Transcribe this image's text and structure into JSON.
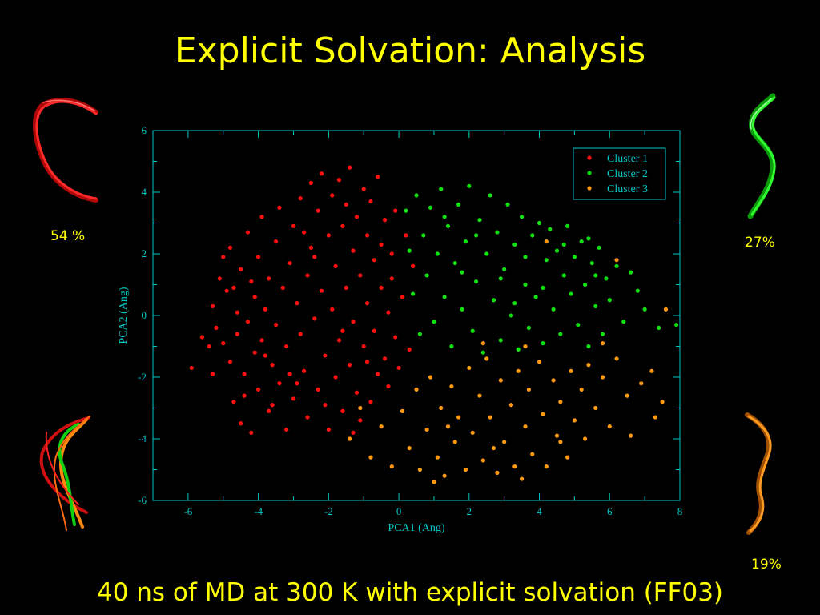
{
  "slide": {
    "title": "Explicit Solvation: Analysis",
    "caption": "40 ns of MD at 300 K with explicit solvation (FF03)",
    "percent_cluster1": "54 %",
    "percent_cluster2": "27%",
    "percent_cluster3": "19%"
  },
  "structures": [
    {
      "name": "cluster-1-structure",
      "color": "#e01010"
    },
    {
      "name": "cluster-2-structure",
      "color": "#20d020"
    },
    {
      "name": "cluster-3-structure",
      "color": "#e07a10"
    },
    {
      "name": "overlay-structure",
      "colors": [
        "#e01010",
        "#20d020",
        "#e07a10"
      ]
    }
  ],
  "chart_data": {
    "type": "scatter",
    "xlabel": "PCA1 (Ang)",
    "ylabel": "PCA2 (Ang)",
    "xlim": [
      -7,
      8
    ],
    "ylim": [
      -6,
      6
    ],
    "xticks": [
      -6,
      -4,
      -2,
      0,
      2,
      4,
      6,
      8
    ],
    "yticks": [
      -6,
      -4,
      -2,
      0,
      2,
      4,
      6
    ],
    "legend_position": "top-right",
    "axis_color": "#00c8c8",
    "series": [
      {
        "name": "Cluster 1",
        "color": "#ff1010",
        "points": [
          [
            -5.9,
            -1.7
          ],
          [
            -5.6,
            -0.7
          ],
          [
            -5.4,
            -1.0
          ],
          [
            -5.3,
            0.3
          ],
          [
            -5.2,
            -0.4
          ],
          [
            -5.1,
            1.2
          ],
          [
            -5.0,
            -0.9
          ],
          [
            -5.0,
            1.9
          ],
          [
            -4.9,
            0.8
          ],
          [
            -4.8,
            -1.5
          ],
          [
            -4.8,
            2.2
          ],
          [
            -4.7,
            -2.8
          ],
          [
            -4.6,
            0.1
          ],
          [
            -4.6,
            -0.6
          ],
          [
            -4.5,
            -3.5
          ],
          [
            -4.5,
            1.5
          ],
          [
            -4.4,
            -1.9
          ],
          [
            -4.3,
            2.7
          ],
          [
            -4.3,
            -0.2
          ],
          [
            -4.2,
            -3.8
          ],
          [
            -4.1,
            0.6
          ],
          [
            -4.1,
            -1.2
          ],
          [
            -4.0,
            1.9
          ],
          [
            -4.0,
            -2.4
          ],
          [
            -3.9,
            -0.8
          ],
          [
            -3.9,
            3.2
          ],
          [
            -3.8,
            0.2
          ],
          [
            -3.7,
            -3.1
          ],
          [
            -3.7,
            1.2
          ],
          [
            -3.6,
            -1.6
          ],
          [
            -3.5,
            2.4
          ],
          [
            -3.5,
            -0.3
          ],
          [
            -3.4,
            -2.2
          ],
          [
            -3.4,
            3.5
          ],
          [
            -3.3,
            0.9
          ],
          [
            -3.2,
            -3.7
          ],
          [
            -3.2,
            -1.0
          ],
          [
            -3.1,
            1.7
          ],
          [
            -3.0,
            2.9
          ],
          [
            -3.0,
            -2.7
          ],
          [
            -2.9,
            0.4
          ],
          [
            -2.8,
            -0.6
          ],
          [
            -2.8,
            3.8
          ],
          [
            -2.7,
            -1.8
          ],
          [
            -2.6,
            1.3
          ],
          [
            -2.6,
            -3.3
          ],
          [
            -2.5,
            2.2
          ],
          [
            -2.5,
            4.3
          ],
          [
            -2.4,
            -0.1
          ],
          [
            -2.3,
            -2.4
          ],
          [
            -2.3,
            3.4
          ],
          [
            -2.2,
            0.8
          ],
          [
            -2.2,
            4.6
          ],
          [
            -2.1,
            -1.3
          ],
          [
            -2.0,
            2.6
          ],
          [
            -2.0,
            -3.7
          ],
          [
            -1.9,
            3.9
          ],
          [
            -1.9,
            0.2
          ],
          [
            -1.8,
            1.6
          ],
          [
            -1.8,
            -2.0
          ],
          [
            -1.7,
            4.4
          ],
          [
            -1.7,
            -0.8
          ],
          [
            -1.6,
            2.9
          ],
          [
            -1.6,
            -3.1
          ],
          [
            -1.5,
            0.9
          ],
          [
            -1.5,
            3.6
          ],
          [
            -1.4,
            -1.6
          ],
          [
            -1.4,
            4.8
          ],
          [
            -1.3,
            2.1
          ],
          [
            -1.3,
            -0.2
          ],
          [
            -1.2,
            -2.5
          ],
          [
            -1.2,
            3.2
          ],
          [
            -1.1,
            1.3
          ],
          [
            -1.1,
            -3.4
          ],
          [
            -1.0,
            4.1
          ],
          [
            -1.0,
            -1.0
          ],
          [
            -0.9,
            2.6
          ],
          [
            -0.9,
            0.4
          ],
          [
            -0.8,
            -2.8
          ],
          [
            -0.8,
            3.7
          ],
          [
            -0.7,
            -0.5
          ],
          [
            -0.7,
            1.8
          ],
          [
            -0.6,
            4.5
          ],
          [
            -0.6,
            -1.9
          ],
          [
            -0.5,
            2.3
          ],
          [
            -0.5,
            0.9
          ],
          [
            -0.4,
            -1.4
          ],
          [
            -0.4,
            3.1
          ],
          [
            -0.3,
            0.1
          ],
          [
            -0.3,
            -2.3
          ],
          [
            -0.2,
            2.0
          ],
          [
            -0.2,
            1.2
          ],
          [
            -0.1,
            -0.7
          ],
          [
            -0.1,
            3.4
          ],
          [
            0.0,
            -1.7
          ],
          [
            0.1,
            0.6
          ],
          [
            0.2,
            2.6
          ],
          [
            0.3,
            -1.1
          ],
          [
            0.4,
            1.6
          ],
          [
            -4.4,
            -2.6
          ],
          [
            -3.6,
            -2.9
          ],
          [
            -2.9,
            -2.2
          ],
          [
            -4.2,
            1.1
          ],
          [
            -3.1,
            -1.9
          ],
          [
            -2.4,
            1.9
          ],
          [
            -1.6,
            -0.5
          ],
          [
            -0.9,
            -1.5
          ],
          [
            -2.7,
            2.7
          ],
          [
            -3.8,
            -1.3
          ],
          [
            -4.7,
            0.9
          ],
          [
            -5.3,
            -1.9
          ],
          [
            -2.1,
            -2.9
          ],
          [
            -1.3,
            -3.8
          ]
        ]
      },
      {
        "name": "Cluster 2",
        "color": "#10e010",
        "points": [
          [
            0.2,
            3.4
          ],
          [
            0.3,
            2.1
          ],
          [
            0.4,
            0.7
          ],
          [
            0.5,
            3.9
          ],
          [
            0.6,
            -0.6
          ],
          [
            0.7,
            2.6
          ],
          [
            0.8,
            1.3
          ],
          [
            0.9,
            3.5
          ],
          [
            1.0,
            -0.2
          ],
          [
            1.1,
            2.0
          ],
          [
            1.2,
            4.1
          ],
          [
            1.3,
            0.6
          ],
          [
            1.4,
            2.9
          ],
          [
            1.5,
            -1.0
          ],
          [
            1.6,
            1.7
          ],
          [
            1.7,
            3.6
          ],
          [
            1.8,
            0.2
          ],
          [
            1.9,
            2.4
          ],
          [
            2.0,
            4.2
          ],
          [
            2.1,
            -0.5
          ],
          [
            2.2,
            1.1
          ],
          [
            2.3,
            3.1
          ],
          [
            2.4,
            -1.2
          ],
          [
            2.5,
            2.0
          ],
          [
            2.6,
            3.9
          ],
          [
            2.7,
            0.5
          ],
          [
            2.8,
            2.7
          ],
          [
            2.9,
            -0.8
          ],
          [
            3.0,
            1.5
          ],
          [
            3.1,
            3.6
          ],
          [
            3.2,
            0.0
          ],
          [
            3.3,
            2.3
          ],
          [
            3.4,
            -1.1
          ],
          [
            3.5,
            3.2
          ],
          [
            3.6,
            1.0
          ],
          [
            3.7,
            -0.4
          ],
          [
            3.8,
            2.6
          ],
          [
            3.9,
            0.6
          ],
          [
            4.0,
            3.0
          ],
          [
            4.1,
            -0.9
          ],
          [
            4.2,
            1.8
          ],
          [
            4.3,
            2.8
          ],
          [
            4.4,
            0.2
          ],
          [
            4.5,
            2.1
          ],
          [
            4.6,
            -0.6
          ],
          [
            4.7,
            1.3
          ],
          [
            4.8,
            2.9
          ],
          [
            4.9,
            0.7
          ],
          [
            5.0,
            1.9
          ],
          [
            5.1,
            -0.3
          ],
          [
            5.2,
            2.4
          ],
          [
            5.3,
            1.0
          ],
          [
            5.4,
            -1.0
          ],
          [
            5.5,
            1.7
          ],
          [
            5.6,
            0.3
          ],
          [
            5.7,
            2.2
          ],
          [
            5.8,
            -0.6
          ],
          [
            5.9,
            1.2
          ],
          [
            6.0,
            0.5
          ],
          [
            6.2,
            1.6
          ],
          [
            6.4,
            -0.2
          ],
          [
            6.6,
            1.4
          ],
          [
            6.8,
            0.8
          ],
          [
            7.0,
            0.2
          ],
          [
            7.4,
            -0.4
          ],
          [
            7.9,
            -0.3
          ],
          [
            1.3,
            3.2
          ],
          [
            2.2,
            2.6
          ],
          [
            3.6,
            1.9
          ],
          [
            4.7,
            2.3
          ],
          [
            5.4,
            2.5
          ],
          [
            2.9,
            1.2
          ],
          [
            1.8,
            1.4
          ],
          [
            4.1,
            0.9
          ],
          [
            5.6,
            1.3
          ],
          [
            3.3,
            0.4
          ]
        ]
      },
      {
        "name": "Cluster 3",
        "color": "#ff9a10",
        "points": [
          [
            -1.4,
            -4.0
          ],
          [
            -1.1,
            -3.0
          ],
          [
            -0.8,
            -4.6
          ],
          [
            -0.5,
            -3.6
          ],
          [
            -0.2,
            -4.9
          ],
          [
            0.1,
            -3.1
          ],
          [
            0.3,
            -4.3
          ],
          [
            0.5,
            -2.4
          ],
          [
            0.6,
            -5.0
          ],
          [
            0.8,
            -3.7
          ],
          [
            0.9,
            -2.0
          ],
          [
            1.1,
            -4.6
          ],
          [
            1.2,
            -3.0
          ],
          [
            1.3,
            -5.2
          ],
          [
            1.5,
            -2.3
          ],
          [
            1.6,
            -4.1
          ],
          [
            1.7,
            -3.3
          ],
          [
            1.9,
            -5.0
          ],
          [
            2.0,
            -1.7
          ],
          [
            2.1,
            -3.8
          ],
          [
            2.3,
            -2.6
          ],
          [
            2.4,
            -4.7
          ],
          [
            2.5,
            -1.4
          ],
          [
            2.6,
            -3.3
          ],
          [
            2.8,
            -5.1
          ],
          [
            2.9,
            -2.1
          ],
          [
            3.0,
            -4.1
          ],
          [
            3.2,
            -2.9
          ],
          [
            3.3,
            -4.9
          ],
          [
            3.4,
            -1.8
          ],
          [
            3.6,
            -3.6
          ],
          [
            3.7,
            -2.4
          ],
          [
            3.8,
            -4.5
          ],
          [
            4.0,
            -1.5
          ],
          [
            4.1,
            -3.2
          ],
          [
            4.2,
            -4.9
          ],
          [
            4.4,
            -2.1
          ],
          [
            4.5,
            -3.9
          ],
          [
            4.6,
            -2.8
          ],
          [
            4.8,
            -4.6
          ],
          [
            4.9,
            -1.8
          ],
          [
            5.0,
            -3.4
          ],
          [
            5.2,
            -2.4
          ],
          [
            5.3,
            -4.0
          ],
          [
            5.4,
            -1.6
          ],
          [
            5.6,
            -3.0
          ],
          [
            5.8,
            -2.0
          ],
          [
            6.0,
            -3.6
          ],
          [
            6.2,
            -1.4
          ],
          [
            6.5,
            -2.6
          ],
          [
            6.6,
            -3.9
          ],
          [
            6.9,
            -2.2
          ],
          [
            7.2,
            -1.8
          ],
          [
            7.5,
            -2.8
          ],
          [
            7.3,
            -3.3
          ],
          [
            7.6,
            0.2
          ],
          [
            4.2,
            2.4
          ],
          [
            6.2,
            1.8
          ],
          [
            5.8,
            -0.9
          ],
          [
            3.6,
            -1.0
          ],
          [
            2.4,
            -0.9
          ],
          [
            1.4,
            -3.6
          ],
          [
            2.7,
            -4.3
          ],
          [
            4.6,
            -4.1
          ],
          [
            1.0,
            -5.4
          ],
          [
            3.5,
            -5.3
          ]
        ]
      }
    ]
  }
}
